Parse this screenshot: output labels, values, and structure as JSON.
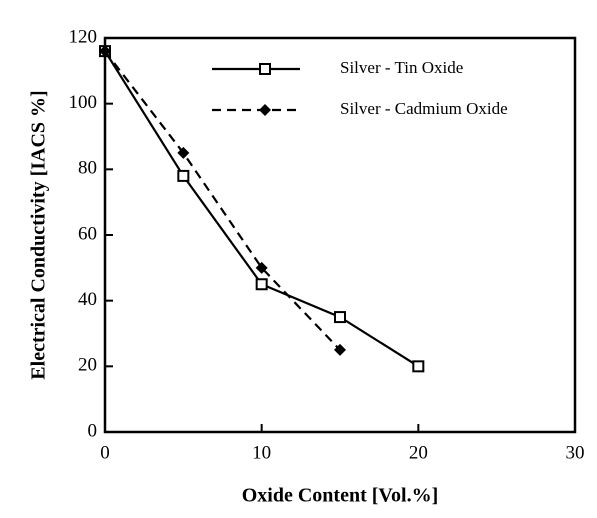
{
  "chart_data": {
    "type": "line",
    "xlabel": "Oxide Content  [Vol.%]",
    "ylabel": "Electrical  Conductivity  [IACS  %]",
    "xlim": [
      0,
      30
    ],
    "xticks": [
      0,
      10,
      20,
      30
    ],
    "ylim": [
      0,
      120
    ],
    "yticks": [
      0,
      20,
      40,
      60,
      80,
      100,
      120
    ],
    "legend": "top",
    "series": [
      {
        "name": "Silver - Tin Oxide",
        "color": "#000000",
        "line_style": "solid",
        "marker": "square",
        "x": [
          0,
          5,
          10,
          15,
          20
        ],
        "values": [
          116,
          78,
          45,
          35,
          20
        ]
      },
      {
        "name": "Silver - Cadmium Oxide",
        "color": "#000000",
        "line_style": "dashed",
        "marker": "diamond",
        "x": [
          0,
          5,
          10,
          15
        ],
        "values": [
          116,
          85,
          50,
          25
        ]
      }
    ]
  }
}
